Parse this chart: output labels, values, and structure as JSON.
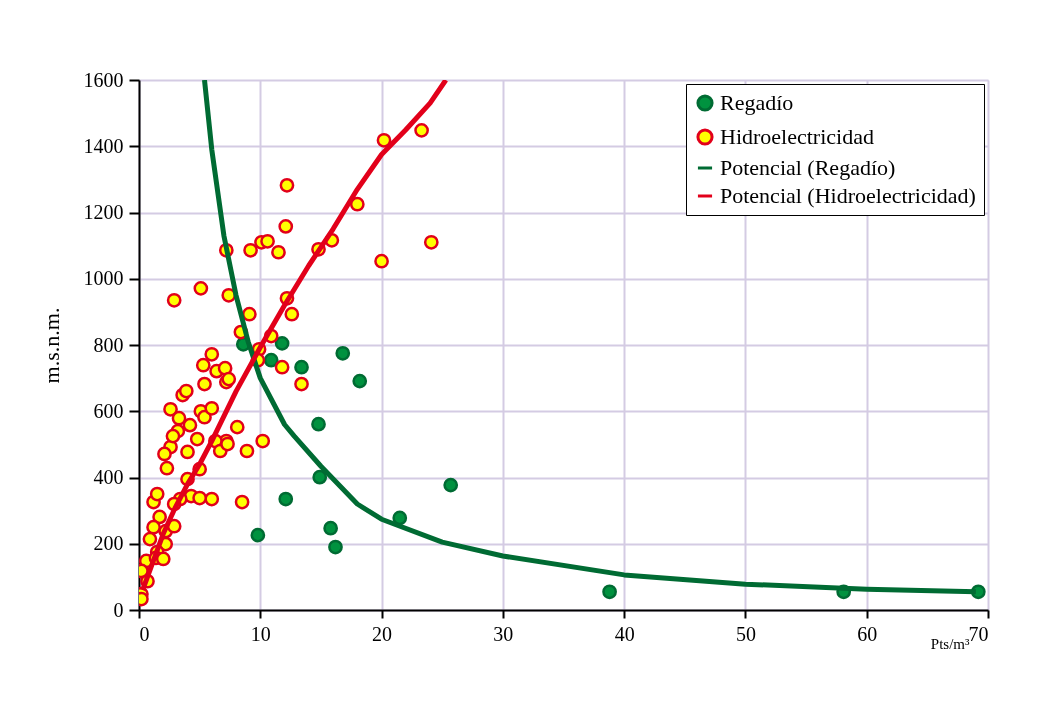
{
  "chart_data": {
    "type": "scatter",
    "xlabel": "Pts/m³",
    "ylabel": "m.s.n.m.",
    "xlim": [
      0,
      70
    ],
    "ylim": [
      0,
      1600
    ],
    "xticks": [
      0,
      10,
      20,
      30,
      40,
      50,
      60,
      70
    ],
    "yticks": [
      0,
      200,
      400,
      600,
      800,
      1000,
      1200,
      1400,
      1600
    ],
    "grid": true,
    "legend": "top right",
    "marker": "circle",
    "series": [
      {
        "name": "Regadío",
        "color": "#00923f",
        "x": [
          8.6,
          11.8,
          10.9,
          13.4,
          16.8,
          18.2,
          14.8,
          14.9,
          12.1,
          9.8,
          15.8,
          16.2,
          21.5,
          25.7,
          38.8,
          58.1,
          69.2
        ],
        "values": [
          802,
          805,
          754,
          733,
          775,
          691,
          561,
          401,
          335,
          226,
          247,
          190,
          278,
          377,
          55,
          55,
          55
        ]
      },
      {
        "name": "Hidroelectricidad",
        "color": "#ffff00",
        "x": [
          2.9,
          5.1,
          7.2,
          12.2,
          12.1,
          20.2,
          23.3,
          24.1,
          20.0,
          15.9,
          18.0,
          14.8,
          9.2,
          10.1,
          10.6,
          11.5,
          7.4,
          12.2,
          12.6,
          9.1,
          8.4,
          10.9,
          9.9,
          9.8,
          11.8,
          13.4,
          10.2,
          8.9,
          8.5,
          8.1,
          7.2,
          5.3,
          6.0,
          5.4,
          6.4,
          7.1,
          7.2,
          7.4,
          2.6,
          3.6,
          3.9,
          4.2,
          3.3,
          3.2,
          2.6,
          2.8,
          2.3,
          2.1,
          4.0,
          4.8,
          5.1,
          5.4,
          6.0,
          6.3,
          6.7,
          7.3,
          5.0,
          4.0,
          4.3,
          6.0,
          5.0,
          3.4,
          2.9,
          1.2,
          1.5,
          1.7,
          1.2,
          2.2,
          2.9,
          2.2,
          0.9,
          1.5,
          0.6,
          1.4,
          2.0,
          0.2,
          0.2,
          0.7,
          0.2
        ],
        "values": [
          935,
          971,
          1086,
          1282,
          1158,
          1418,
          1448,
          1110,
          1053,
          1116,
          1225,
          1089,
          1086,
          1110,
          1113,
          1080,
          950,
          941,
          893,
          893,
          839,
          827,
          787,
          754,
          733,
          682,
          510,
          480,
          326,
          552,
          510,
          739,
          772,
          682,
          721,
          730,
          688,
          697,
          606,
          649,
          661,
          558,
          579,
          540,
          492,
          525,
          428,
          471,
          477,
          516,
          600,
          582,
          609,
          510,
          480,
          501,
          425,
          395,
          344,
          335,
          338,
          335,
          320,
          326,
          350,
          281,
          250,
          238,
          253,
          199,
          214,
          175,
          148,
          157,
          154,
          48,
          33,
          87,
          118
        ]
      },
      {
        "name": "Potencial (Regadío)",
        "type": "line",
        "marker": "none",
        "color": "#006b33",
        "x": [
          5.4,
          6,
          7,
          8,
          9,
          10,
          12,
          12.8,
          15,
          18,
          20,
          25,
          30,
          40,
          50,
          60,
          69
        ],
        "values": [
          1600,
          1390,
          1130,
          950,
          810,
          700,
          560,
          525,
          434,
          320,
          274,
          205,
          163,
          106,
          78,
          63,
          55
        ]
      },
      {
        "name": "Potencial (Hidroelectricidad)",
        "type": "line",
        "marker": "none",
        "color": "#e2001a",
        "x": [
          0.3,
          1,
          2,
          3,
          4,
          5,
          6,
          8,
          10,
          12,
          14,
          16,
          18,
          20,
          22,
          24,
          25.3
        ],
        "values": [
          60,
          130,
          230,
          310,
          380,
          440,
          510,
          660,
          793,
          920,
          1040,
          1150,
          1270,
          1375,
          1450,
          1530,
          1600
        ]
      }
    ]
  }
}
